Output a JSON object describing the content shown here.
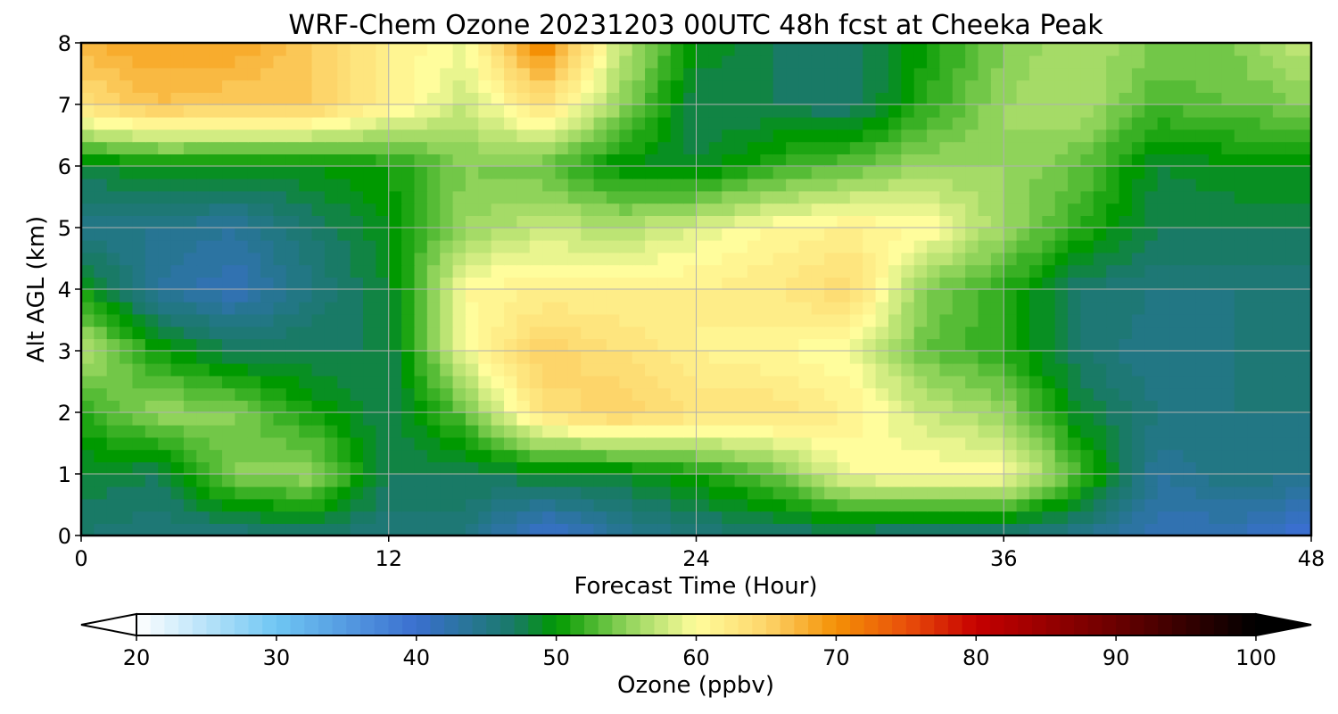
{
  "chart_data": {
    "type": "heatmap",
    "title": "WRF-Chem Ozone  20231203 00UTC 48h fcst at Cheeka Peak",
    "xlabel": "Forecast Time (Hour)",
    "ylabel": "Alt AGL (km)",
    "xlim": [
      0,
      48
    ],
    "ylim": [
      0,
      8
    ],
    "x_ticks": [
      0,
      12,
      24,
      36,
      48
    ],
    "y_ticks": [
      0,
      1,
      2,
      3,
      4,
      5,
      6,
      7,
      8
    ],
    "grid": true,
    "x": [
      0,
      3,
      6,
      9,
      12,
      15,
      18,
      21,
      24,
      27,
      30,
      33,
      36,
      39,
      42,
      45,
      48
    ],
    "y": [
      0,
      1,
      2,
      3,
      4,
      5,
      6,
      7,
      8
    ],
    "z": [
      [
        47,
        46,
        46,
        47,
        46,
        46,
        40,
        44,
        46,
        47,
        47,
        46,
        46,
        45,
        42,
        42,
        40
      ],
      [
        49,
        48,
        55,
        56,
        48,
        48,
        49,
        49,
        51,
        54,
        60,
        61,
        61,
        53,
        44,
        46,
        45
      ],
      [
        52,
        56,
        55,
        51,
        48,
        54,
        64,
        66,
        64,
        64,
        62,
        58,
        56,
        49,
        46,
        46,
        46
      ],
      [
        58,
        51,
        48,
        48,
        48,
        60,
        66,
        64,
        62,
        61,
        60,
        54,
        52,
        47,
        45,
        46,
        46
      ],
      [
        51,
        44,
        42,
        46,
        49,
        61,
        62,
        62,
        62,
        63,
        65,
        55,
        52,
        47,
        46,
        46,
        46
      ],
      [
        45,
        45,
        44,
        47,
        50,
        56,
        58,
        57,
        59,
        61,
        62,
        61,
        56,
        52,
        48,
        48,
        48
      ],
      [
        49,
        50,
        50,
        50,
        51,
        55,
        54,
        50,
        49,
        52,
        54,
        56,
        56,
        54,
        49,
        50,
        50
      ],
      [
        64,
        67,
        66,
        66,
        62,
        58,
        64,
        56,
        48,
        48,
        47,
        52,
        56,
        57,
        53,
        54,
        55
      ],
      [
        68,
        69,
        69,
        66,
        62,
        60,
        72,
        58,
        50,
        48,
        47,
        51,
        55,
        57,
        55,
        55,
        58
      ]
    ],
    "colorbar": {
      "label": "Ozone  (ppbv)",
      "min": 20,
      "max": 100,
      "ticks": [
        20,
        30,
        40,
        50,
        60,
        70,
        80,
        90,
        100
      ],
      "extend": "both",
      "orientation": "horizontal",
      "colormap": [
        [
          20,
          "#ffffff"
        ],
        [
          30,
          "#6fc6f3"
        ],
        [
          40,
          "#3a6fcf"
        ],
        [
          47,
          "#197a66"
        ],
        [
          50,
          "#009900"
        ],
        [
          55,
          "#8fd35a"
        ],
        [
          60,
          "#fffd9c"
        ],
        [
          65,
          "#fdd56a"
        ],
        [
          70,
          "#f49005"
        ],
        [
          75,
          "#e9500a"
        ],
        [
          80,
          "#c60000"
        ],
        [
          90,
          "#6a0000"
        ],
        [
          100,
          "#000000"
        ]
      ]
    }
  }
}
